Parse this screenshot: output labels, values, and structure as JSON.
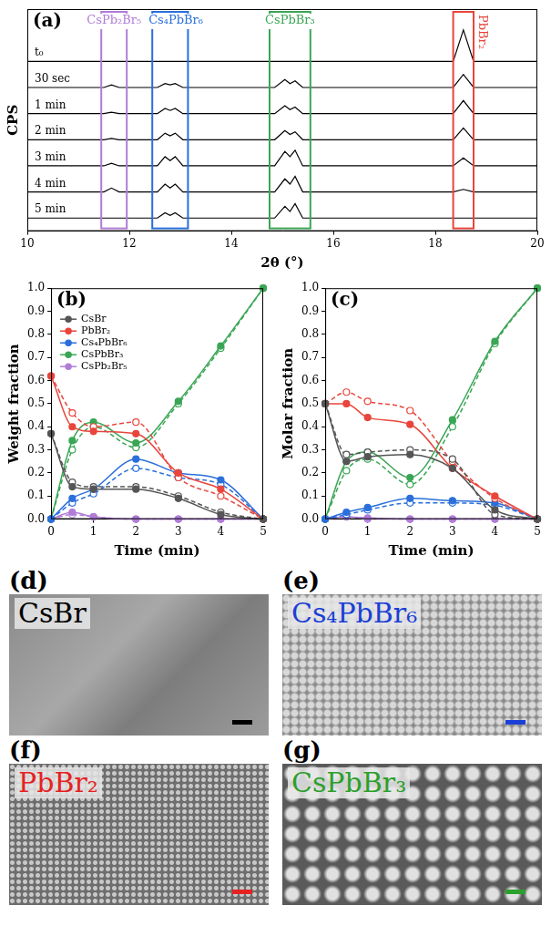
{
  "chart_data": [
    {
      "type": "line",
      "title": "(a)",
      "xlabel": "2θ (°)",
      "ylabel": "CPS",
      "x": [
        10,
        11.5,
        11.65,
        11.8,
        12.55,
        12.7,
        12.8,
        12.9,
        13.05,
        14.85,
        15.05,
        15.15,
        15.25,
        15.4,
        18.35,
        18.55,
        18.75,
        20
      ],
      "series": [
        {
          "name": "t₀",
          "color": "#000000",
          "values": [
            6.5,
            6.5,
            6.5,
            6.5,
            6.5,
            6.5,
            6.5,
            6.5,
            6.5,
            6.5,
            6.5,
            6.5,
            6.5,
            6.5,
            6.5,
            7.7,
            6.5,
            6.5
          ]
        },
        {
          "name": "30 sec",
          "color": "#000000",
          "values": [
            5.5,
            5.5,
            5.6,
            5.5,
            5.5,
            5.65,
            5.6,
            5.65,
            5.5,
            5.5,
            5.8,
            5.65,
            5.75,
            5.5,
            5.5,
            6.0,
            5.5,
            5.5
          ]
        },
        {
          "name": "1 min",
          "color": "#000000",
          "values": [
            4.5,
            4.5,
            4.55,
            4.5,
            4.5,
            4.7,
            4.62,
            4.7,
            4.5,
            4.5,
            4.8,
            4.65,
            4.75,
            4.5,
            4.5,
            5.0,
            4.5,
            4.5
          ]
        },
        {
          "name": "2 min",
          "color": "#000000",
          "values": [
            3.5,
            3.5,
            3.55,
            3.5,
            3.5,
            3.75,
            3.65,
            3.75,
            3.5,
            3.5,
            3.85,
            3.7,
            3.8,
            3.5,
            3.5,
            3.95,
            3.5,
            3.5
          ]
        },
        {
          "name": "3 min",
          "color": "#000000",
          "values": [
            2.5,
            2.5,
            2.6,
            2.5,
            2.5,
            2.85,
            2.7,
            2.85,
            2.5,
            2.5,
            3.05,
            2.85,
            3.1,
            2.5,
            2.5,
            2.8,
            2.5,
            2.5
          ]
        },
        {
          "name": "4 min",
          "color": "#000000",
          "values": [
            1.5,
            1.5,
            1.65,
            1.5,
            1.5,
            1.8,
            1.65,
            1.8,
            1.5,
            1.5,
            2.0,
            1.8,
            2.1,
            1.5,
            1.5,
            1.6,
            1.5,
            1.5
          ]
        },
        {
          "name": "5 min",
          "color": "#000000",
          "values": [
            0.5,
            0.5,
            0.5,
            0.5,
            0.5,
            0.7,
            0.6,
            0.7,
            0.5,
            0.5,
            0.95,
            0.75,
            1.05,
            0.5,
            0.5,
            0.5,
            0.5,
            0.5
          ]
        }
      ],
      "annotations": [
        {
          "text": "CsPb₂Br₅",
          "color": "#b07cd8",
          "xmin": 11.45,
          "xmax": 11.95
        },
        {
          "text": "Cs₄PbBr₆",
          "color": "#2a6fdb",
          "xmin": 12.45,
          "xmax": 13.15
        },
        {
          "text": "CsPbBr₃",
          "color": "#3aa655",
          "xmin": 14.75,
          "xmax": 15.55
        },
        {
          "text": "PbBr₂",
          "color": "#e8453c",
          "xmin": 18.35,
          "xmax": 18.75
        }
      ],
      "xlim": [
        10,
        20
      ],
      "xticks": [
        10,
        12,
        14,
        16,
        18,
        20
      ],
      "ylim": [
        0,
        8.5
      ],
      "tick_labels": "x",
      "grid": false,
      "marker": "none",
      "line_style": "solid"
    },
    {
      "type": "line",
      "title": "(b)",
      "xlabel": "Time (min)",
      "ylabel": "Weight fraction",
      "x": [
        0,
        0.5,
        1,
        2,
        3,
        4,
        5
      ],
      "series": [
        {
          "name": "CsBr",
          "color": "#555555",
          "marker": "filled",
          "line_style": "solid",
          "values": [
            0.37,
            0.14,
            0.13,
            0.13,
            0.09,
            0.02,
            0.0
          ]
        },
        {
          "name": "CsBr",
          "color": "#555555",
          "marker": "open",
          "line_style": "dashed",
          "values": [
            0.37,
            0.16,
            0.14,
            0.14,
            0.1,
            0.03,
            0.0
          ]
        },
        {
          "name": "PbBr₂",
          "color": "#e8453c",
          "marker": "filled",
          "line_style": "solid",
          "values": [
            0.62,
            0.4,
            0.38,
            0.37,
            0.2,
            0.13,
            0.0
          ]
        },
        {
          "name": "PbBr₂",
          "color": "#e8453c",
          "marker": "open",
          "line_style": "dashed",
          "values": [
            0.62,
            0.46,
            0.4,
            0.42,
            0.18,
            0.1,
            0.0
          ]
        },
        {
          "name": "Cs₄PbBr₆",
          "color": "#2a6fdb",
          "marker": "filled",
          "line_style": "solid",
          "values": [
            0.0,
            0.09,
            0.13,
            0.26,
            0.2,
            0.17,
            0.0
          ]
        },
        {
          "name": "Cs₄PbBr₆",
          "color": "#2a6fdb",
          "marker": "open",
          "line_style": "dashed",
          "values": [
            0.0,
            0.07,
            0.11,
            0.22,
            0.18,
            0.15,
            0.0
          ]
        },
        {
          "name": "CsPbBr₃",
          "color": "#3aa655",
          "marker": "filled",
          "line_style": "solid",
          "values": [
            0.0,
            0.34,
            0.42,
            0.33,
            0.51,
            0.75,
            1.0
          ]
        },
        {
          "name": "CsPbBr₃",
          "color": "#3aa655",
          "marker": "open",
          "line_style": "dashed",
          "values": [
            0.0,
            0.3,
            0.4,
            0.31,
            0.5,
            0.74,
            1.0
          ]
        },
        {
          "name": "CsPb₂Br₅",
          "color": "#b07cd8",
          "marker": "filled",
          "line_style": "solid",
          "values": [
            0.0,
            0.03,
            0.01,
            0.0,
            0.0,
            0.0,
            0.0
          ]
        },
        {
          "name": "CsPb₂Br₅",
          "color": "#b07cd8",
          "marker": "open",
          "line_style": "dashed",
          "values": [
            0.0,
            0.02,
            0.01,
            0.0,
            0.0,
            0.0,
            0.0
          ]
        }
      ],
      "xlim": [
        0,
        5
      ],
      "xticks": [
        0,
        1,
        2,
        3,
        4,
        5
      ],
      "ylim": [
        0,
        1
      ],
      "yticks": [
        {
          "value": 0,
          "label": "0.0"
        },
        0.1,
        0.2,
        0.3,
        0.4,
        0.5,
        0.6,
        0.7,
        0.8,
        0.9,
        {
          "value": 1,
          "label": "1.0"
        }
      ],
      "grid": false,
      "legend": "upper left"
    },
    {
      "type": "line",
      "title": "(c)",
      "xlabel": "Time (min)",
      "ylabel": "Molar fraction",
      "x": [
        0,
        0.5,
        1,
        2,
        3,
        4,
        5
      ],
      "series": [
        {
          "color": "#555555",
          "marker": "filled",
          "line_style": "solid",
          "values": [
            0.5,
            0.25,
            0.27,
            0.28,
            0.22,
            0.04,
            0.0
          ]
        },
        {
          "color": "#555555",
          "marker": "open",
          "line_style": "dashed",
          "values": [
            0.5,
            0.28,
            0.29,
            0.3,
            0.26,
            0.02,
            0.0
          ]
        },
        {
          "color": "#e8453c",
          "marker": "filled",
          "line_style": "solid",
          "values": [
            0.5,
            0.5,
            0.44,
            0.41,
            0.22,
            0.1,
            0.0
          ]
        },
        {
          "color": "#e8453c",
          "marker": "open",
          "line_style": "dashed",
          "values": [
            0.5,
            0.55,
            0.51,
            0.47,
            0.25,
            0.09,
            0.0
          ]
        },
        {
          "color": "#2a6fdb",
          "marker": "filled",
          "line_style": "solid",
          "values": [
            0.0,
            0.03,
            0.05,
            0.09,
            0.08,
            0.07,
            0.0
          ]
        },
        {
          "color": "#2a6fdb",
          "marker": "open",
          "line_style": "dashed",
          "values": [
            0.0,
            0.02,
            0.04,
            0.07,
            0.07,
            0.06,
            0.0
          ]
        },
        {
          "color": "#3aa655",
          "marker": "filled",
          "line_style": "solid",
          "values": [
            0.0,
            0.25,
            0.29,
            0.18,
            0.43,
            0.77,
            1.0
          ]
        },
        {
          "color": "#3aa655",
          "marker": "open",
          "line_style": "dashed",
          "values": [
            0.0,
            0.21,
            0.26,
            0.15,
            0.4,
            0.76,
            1.0
          ]
        },
        {
          "color": "#b07cd8",
          "marker": "filled",
          "line_style": "solid",
          "values": [
            0.0,
            0.01,
            0.005,
            0.0,
            0.0,
            0.0,
            0.0
          ]
        },
        {
          "color": "#b07cd8",
          "marker": "open",
          "line_style": "dashed",
          "values": [
            0.0,
            0.01,
            0.0,
            0.0,
            0.0,
            0.0,
            0.0
          ]
        }
      ],
      "xlim": [
        0,
        5
      ],
      "xticks": [
        0,
        1,
        2,
        3,
        4,
        5
      ],
      "ylim": [
        0,
        1
      ],
      "yticks": [
        {
          "value": 0,
          "label": "0.0"
        },
        0.1,
        0.2,
        0.3,
        0.4,
        0.5,
        0.6,
        0.7,
        0.8,
        0.9,
        {
          "value": 1,
          "label": "1.0"
        }
      ],
      "grid": false
    }
  ],
  "images": [
    {
      "letter": "(d)",
      "label": "CsBr",
      "color": "#000000"
    },
    {
      "letter": "(e)",
      "label": "Cs₄PbBr₆",
      "color": "#1a3fd6"
    },
    {
      "letter": "(f)",
      "label": "PbBr₂",
      "color": "#e52222"
    },
    {
      "letter": "(g)",
      "label": "CsPbBr₃",
      "color": "#2ca02c"
    }
  ]
}
